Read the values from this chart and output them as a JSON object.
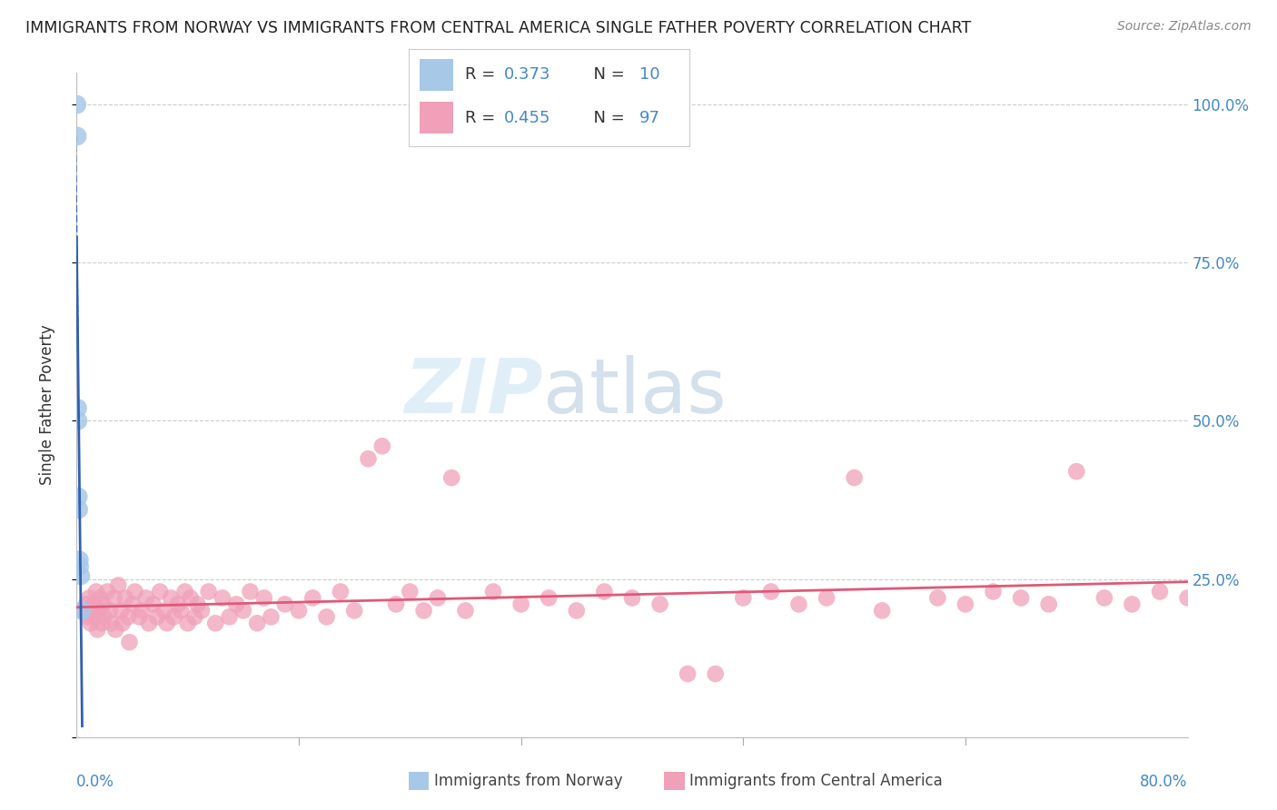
{
  "title": "IMMIGRANTS FROM NORWAY VS IMMIGRANTS FROM CENTRAL AMERICA SINGLE FATHER POVERTY CORRELATION CHART",
  "source": "Source: ZipAtlas.com",
  "ylabel": "Single Father Poverty",
  "norway_R": 0.373,
  "norway_N": 10,
  "ca_R": 0.455,
  "ca_N": 97,
  "norway_color": "#a8c8e8",
  "ca_color": "#f0a0b8",
  "norway_line_color": "#3060b0",
  "ca_line_color": "#e05878",
  "right_tick_color": "#4488cc",
  "xlim": [
    0.0,
    0.8
  ],
  "ylim": [
    0.0,
    1.05
  ],
  "norway_x": [
    0.0003,
    0.0005,
    0.0008,
    0.001,
    0.0012,
    0.0015,
    0.002,
    0.0022,
    0.003,
    0.004
  ],
  "norway_y": [
    1.0,
    0.95,
    0.52,
    0.5,
    0.38,
    0.36,
    0.28,
    0.27,
    0.255,
    0.2
  ],
  "ca_x": [
    0.005,
    0.007,
    0.008,
    0.009,
    0.01,
    0.011,
    0.012,
    0.013,
    0.014,
    0.015,
    0.016,
    0.017,
    0.018,
    0.019,
    0.02,
    0.022,
    0.024,
    0.025,
    0.027,
    0.028,
    0.03,
    0.032,
    0.033,
    0.035,
    0.037,
    0.038,
    0.04,
    0.042,
    0.045,
    0.047,
    0.05,
    0.052,
    0.055,
    0.058,
    0.06,
    0.063,
    0.065,
    0.068,
    0.07,
    0.073,
    0.075,
    0.078,
    0.08,
    0.082,
    0.085,
    0.087,
    0.09,
    0.095,
    0.1,
    0.105,
    0.11,
    0.115,
    0.12,
    0.125,
    0.13,
    0.135,
    0.14,
    0.15,
    0.16,
    0.17,
    0.18,
    0.19,
    0.2,
    0.21,
    0.22,
    0.23,
    0.24,
    0.25,
    0.26,
    0.27,
    0.28,
    0.3,
    0.32,
    0.34,
    0.36,
    0.38,
    0.4,
    0.42,
    0.44,
    0.46,
    0.48,
    0.5,
    0.52,
    0.54,
    0.56,
    0.58,
    0.62,
    0.64,
    0.66,
    0.68,
    0.7,
    0.72,
    0.74,
    0.76,
    0.78,
    0.8,
    0.82
  ],
  "ca_y": [
    0.2,
    0.21,
    0.19,
    0.22,
    0.18,
    0.2,
    0.21,
    0.19,
    0.23,
    0.17,
    0.2,
    0.22,
    0.18,
    0.21,
    0.19,
    0.23,
    0.2,
    0.18,
    0.22,
    0.17,
    0.24,
    0.2,
    0.18,
    0.22,
    0.19,
    0.15,
    0.21,
    0.23,
    0.19,
    0.2,
    0.22,
    0.18,
    0.21,
    0.19,
    0.23,
    0.2,
    0.18,
    0.22,
    0.19,
    0.21,
    0.2,
    0.23,
    0.18,
    0.22,
    0.19,
    0.21,
    0.2,
    0.23,
    0.18,
    0.22,
    0.19,
    0.21,
    0.2,
    0.23,
    0.18,
    0.22,
    0.19,
    0.21,
    0.2,
    0.22,
    0.19,
    0.23,
    0.2,
    0.44,
    0.46,
    0.21,
    0.23,
    0.2,
    0.22,
    0.41,
    0.2,
    0.23,
    0.21,
    0.22,
    0.2,
    0.23,
    0.22,
    0.21,
    0.1,
    0.1,
    0.22,
    0.23,
    0.21,
    0.22,
    0.41,
    0.2,
    0.22,
    0.21,
    0.23,
    0.22,
    0.21,
    0.42,
    0.22,
    0.21,
    0.23,
    0.22,
    0.21
  ]
}
